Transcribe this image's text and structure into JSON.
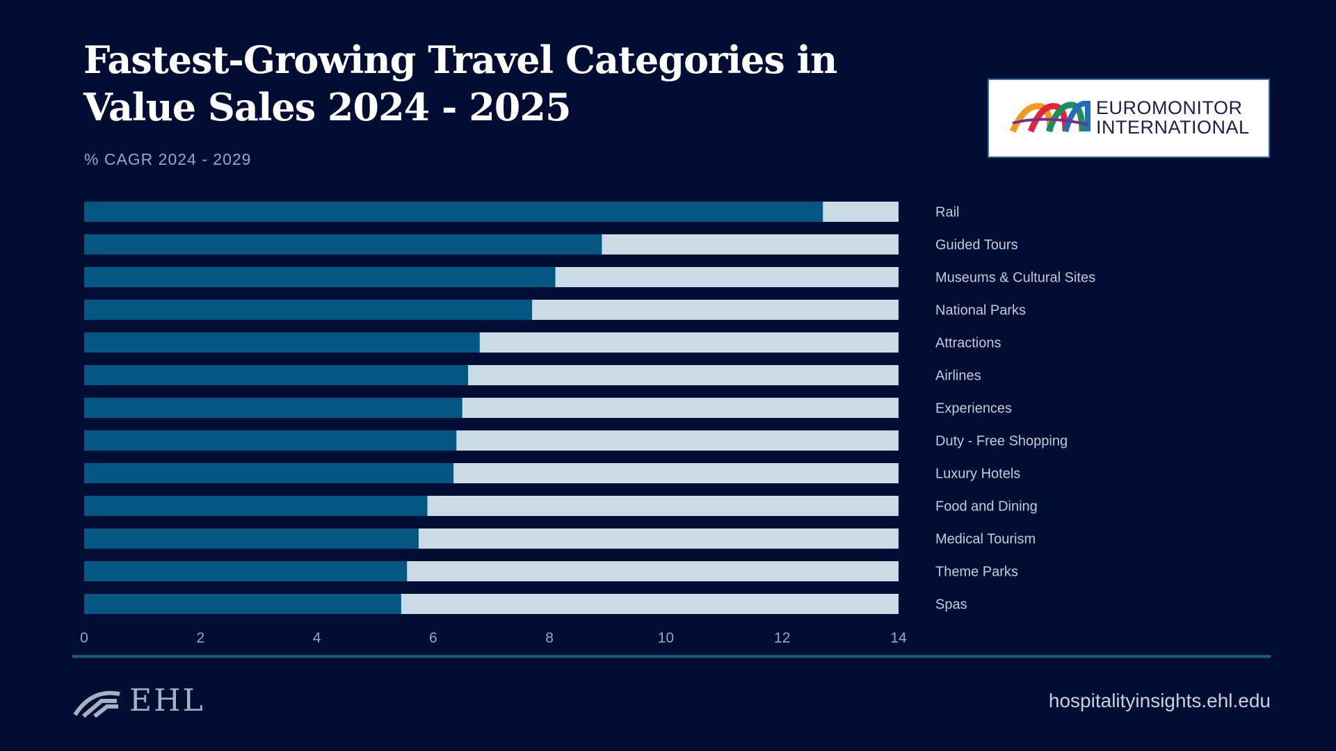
{
  "title": "Fastest-Growing Travel Categories in Value Sales 2024 - 2025",
  "subtitle": "% CAGR 2024 - 2029",
  "logo": {
    "line1": "EUROMONITOR",
    "line2": "INTERNATIONAL"
  },
  "footer": {
    "brand": "EHL",
    "url": "hospitalityinsights.ehl.edu"
  },
  "colors": {
    "background": "#020d33",
    "bar_fill": "#035782",
    "bar_track": "#c9dce5",
    "divider": "#0e5f8c"
  },
  "chart_data": {
    "type": "bar",
    "orientation": "horizontal",
    "title": "Fastest-Growing Travel Categories in Value Sales 2024 - 2025",
    "subtitle": "% CAGR 2024 - 2029",
    "categories": [
      "Rail",
      "Guided Tours",
      "Museums & Cultural Sites",
      "National Parks",
      "Attractions",
      "Airlines",
      "Experiences",
      "Duty - Free Shopping",
      "Luxury Hotels",
      "Food and Dining",
      "Medical Tourism",
      "Theme Parks",
      "Spas"
    ],
    "values": [
      12.7,
      8.9,
      8.1,
      7.7,
      6.8,
      6.6,
      6.5,
      6.4,
      6.35,
      5.9,
      5.75,
      5.55,
      5.45
    ],
    "xlim": [
      0,
      14
    ],
    "xticks": [
      "0",
      "2",
      "4",
      "6",
      "8",
      "10",
      "12",
      "14"
    ],
    "grid": false,
    "legend": "none",
    "category_labels_position": "right"
  }
}
